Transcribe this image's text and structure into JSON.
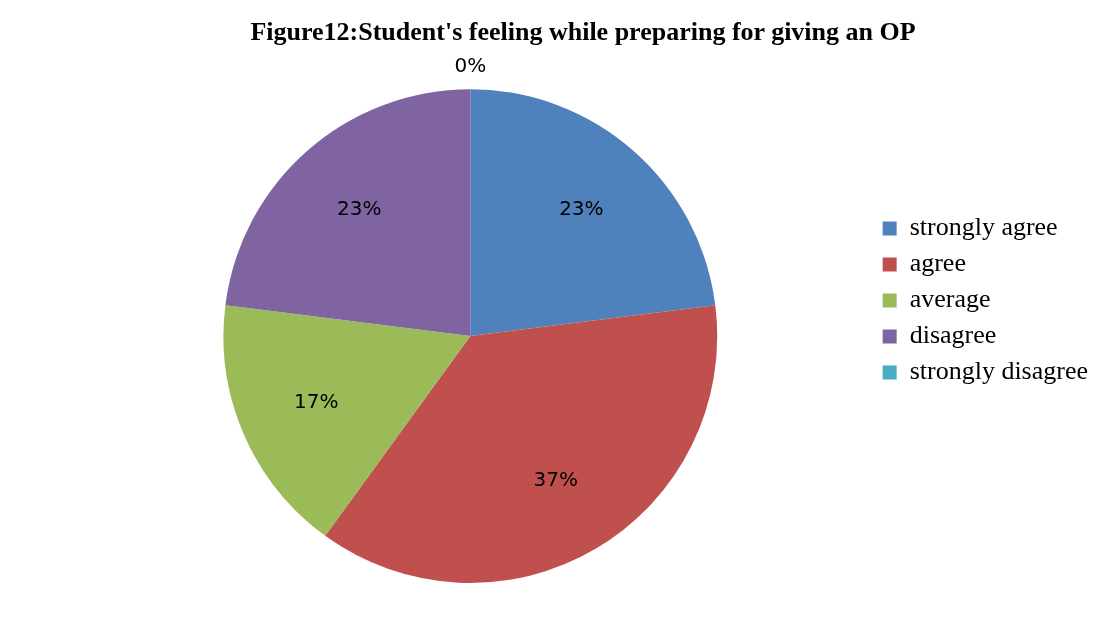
{
  "chart_data": {
    "type": "pie",
    "title": "Figure12:Student's feeling while preparing for giving an OP",
    "categories": [
      "strongly agree",
      "agree",
      "average",
      "disagree",
      "strongly disagree"
    ],
    "values": [
      23,
      37,
      17,
      23,
      0
    ],
    "colors": [
      "#4f81bd",
      "#c0504d",
      "#9bbb59",
      "#8064a2",
      "#4bacc6"
    ],
    "value_labels": [
      "23%",
      "37%",
      "17%",
      "23%",
      "0%"
    ],
    "legend": "right"
  }
}
